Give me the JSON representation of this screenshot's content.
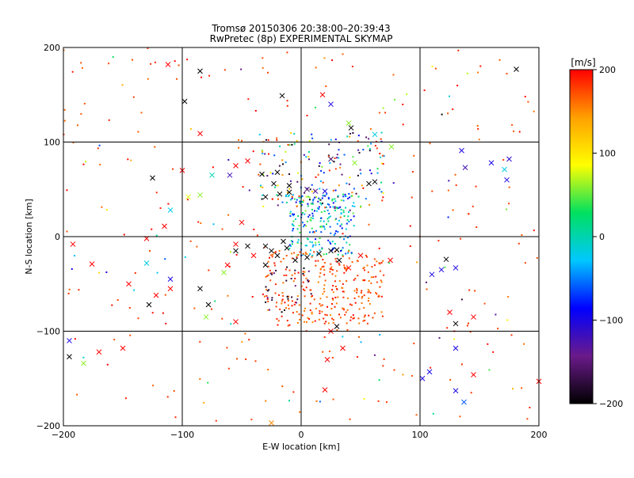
{
  "chart_data": {
    "type": "scatter",
    "title": "Tromsø 20150306 20:38:00–20:39:43",
    "subtitle": "RwPretec (8p) EXPERIMENTAL SKYMAP",
    "xlabel": "E-W location [km]",
    "ylabel": "N-S location [km]",
    "xlim": [
      -200,
      200
    ],
    "ylim": [
      -200,
      200
    ],
    "xticks": [
      -200,
      -100,
      0,
      100,
      200
    ],
    "yticks": [
      -200,
      -100,
      0,
      100,
      200
    ],
    "xtick_labels": [
      "−200",
      "−100",
      "0",
      "100",
      "200"
    ],
    "ytick_labels": [
      "−200",
      "−100",
      "0",
      "100",
      "200"
    ],
    "grid": true,
    "colorbar": {
      "label": "[m/s]",
      "range": [
        -200,
        200
      ],
      "ticks": [
        200,
        100,
        0,
        -100,
        -200
      ],
      "tick_labels": [
        "200",
        "100",
        "0",
        "−100",
        "−200"
      ],
      "colors": [
        "#000000",
        "#6a1a8a",
        "#0000ff",
        "#00c8ff",
        "#00e060",
        "#ffff00",
        "#ffa000",
        "#ff0000"
      ]
    },
    "cross_points": [
      {
        "x": -112,
        "y": 182,
        "v": 200
      },
      {
        "x": -85,
        "y": 175,
        "v": -200
      },
      {
        "x": -98,
        "y": 143,
        "v": -200
      },
      {
        "x": -16,
        "y": 149,
        "v": -200
      },
      {
        "x": 18,
        "y": 150,
        "v": 200
      },
      {
        "x": 25,
        "y": 140,
        "v": -100
      },
      {
        "x": 40,
        "y": 120,
        "v": 60
      },
      {
        "x": 42,
        "y": 115,
        "v": -200
      },
      {
        "x": 62,
        "y": 108,
        "v": -20
      },
      {
        "x": 76,
        "y": 95,
        "v": 60
      },
      {
        "x": 181,
        "y": 177,
        "v": -200
      },
      {
        "x": 135,
        "y": 91,
        "v": -100
      },
      {
        "x": 138,
        "y": 73,
        "v": -120
      },
      {
        "x": 160,
        "y": 78,
        "v": -100
      },
      {
        "x": 175,
        "y": 82,
        "v": -110
      },
      {
        "x": 171,
        "y": 71,
        "v": -20
      },
      {
        "x": 173,
        "y": 60,
        "v": -100
      },
      {
        "x": -85,
        "y": 109,
        "v": 200
      },
      {
        "x": -125,
        "y": 62,
        "v": -200
      },
      {
        "x": -100,
        "y": 70,
        "v": 200
      },
      {
        "x": -75,
        "y": 65,
        "v": 0
      },
      {
        "x": -60,
        "y": 65,
        "v": -120
      },
      {
        "x": -55,
        "y": 75,
        "v": 200
      },
      {
        "x": -45,
        "y": 80,
        "v": 200
      },
      {
        "x": -33,
        "y": 66,
        "v": -200
      },
      {
        "x": -20,
        "y": 68,
        "v": -200
      },
      {
        "x": -10,
        "y": 54,
        "v": -200
      },
      {
        "x": -23,
        "y": 56,
        "v": -200
      },
      {
        "x": -30,
        "y": 42,
        "v": -200
      },
      {
        "x": -18,
        "y": 45,
        "v": -200
      },
      {
        "x": -10,
        "y": 47,
        "v": -200
      },
      {
        "x": 5,
        "y": 50,
        "v": -160
      },
      {
        "x": 12,
        "y": 48,
        "v": -130
      },
      {
        "x": 20,
        "y": 48,
        "v": -100
      },
      {
        "x": 25,
        "y": 82,
        "v": -160
      },
      {
        "x": 45,
        "y": 78,
        "v": 60
      },
      {
        "x": 57,
        "y": 56,
        "v": -200
      },
      {
        "x": 62,
        "y": 58,
        "v": -200
      },
      {
        "x": -95,
        "y": 42,
        "v": 80
      },
      {
        "x": -85,
        "y": 44,
        "v": 60
      },
      {
        "x": -110,
        "y": 28,
        "v": -20
      },
      {
        "x": -115,
        "y": 11,
        "v": 200
      },
      {
        "x": -50,
        "y": 15,
        "v": 200
      },
      {
        "x": -130,
        "y": -2,
        "v": 200
      },
      {
        "x": -192,
        "y": -8,
        "v": 200
      },
      {
        "x": -176,
        "y": -29,
        "v": 200
      },
      {
        "x": -55,
        "y": -8,
        "v": 200
      },
      {
        "x": -45,
        "y": -10,
        "v": -200
      },
      {
        "x": -55,
        "y": -15,
        "v": -200
      },
      {
        "x": -40,
        "y": -20,
        "v": 200
      },
      {
        "x": -30,
        "y": -30,
        "v": -200
      },
      {
        "x": -30,
        "y": -10,
        "v": -200
      },
      {
        "x": -25,
        "y": -15,
        "v": -200
      },
      {
        "x": -20,
        "y": -20,
        "v": -200
      },
      {
        "x": -15,
        "y": -5,
        "v": -200
      },
      {
        "x": -12,
        "y": -12,
        "v": -200
      },
      {
        "x": -5,
        "y": -25,
        "v": -200
      },
      {
        "x": 5,
        "y": -22,
        "v": -200
      },
      {
        "x": 15,
        "y": -18,
        "v": -200
      },
      {
        "x": 25,
        "y": -15,
        "v": -200
      },
      {
        "x": 32,
        "y": -25,
        "v": -200
      },
      {
        "x": 30,
        "y": -14,
        "v": -200
      },
      {
        "x": 40,
        "y": -33,
        "v": 200
      },
      {
        "x": 50,
        "y": -20,
        "v": 200
      },
      {
        "x": 75,
        "y": -25,
        "v": 200
      },
      {
        "x": 110,
        "y": -40,
        "v": -100
      },
      {
        "x": 118,
        "y": -35,
        "v": -100
      },
      {
        "x": 122,
        "y": -24,
        "v": -200
      },
      {
        "x": 130,
        "y": -33,
        "v": -100
      },
      {
        "x": -130,
        "y": -28,
        "v": -20
      },
      {
        "x": -110,
        "y": -45,
        "v": -100
      },
      {
        "x": -145,
        "y": -50,
        "v": 200
      },
      {
        "x": -122,
        "y": -62,
        "v": 200
      },
      {
        "x": -128,
        "y": -72,
        "v": -200
      },
      {
        "x": -110,
        "y": -55,
        "v": 200
      },
      {
        "x": -85,
        "y": -55,
        "v": -200
      },
      {
        "x": -78,
        "y": -72,
        "v": -200
      },
      {
        "x": -62,
        "y": -30,
        "v": 200
      },
      {
        "x": -65,
        "y": -38,
        "v": 60
      },
      {
        "x": -80,
        "y": -85,
        "v": 60
      },
      {
        "x": -55,
        "y": -90,
        "v": 200
      },
      {
        "x": -150,
        "y": -118,
        "v": 200
      },
      {
        "x": -170,
        "y": -122,
        "v": 200
      },
      {
        "x": -195,
        "y": -110,
        "v": -100
      },
      {
        "x": -195,
        "y": -127,
        "v": -200
      },
      {
        "x": -183,
        "y": -134,
        "v": 60
      },
      {
        "x": 25,
        "y": -100,
        "v": 200
      },
      {
        "x": 30,
        "y": -95,
        "v": -200
      },
      {
        "x": 35,
        "y": -118,
        "v": 200
      },
      {
        "x": 22,
        "y": -130,
        "v": 200
      },
      {
        "x": 20,
        "y": -162,
        "v": 200
      },
      {
        "x": 108,
        "y": -143,
        "v": -100
      },
      {
        "x": 102,
        "y": -150,
        "v": -100
      },
      {
        "x": 125,
        "y": -80,
        "v": 200
      },
      {
        "x": 130,
        "y": -92,
        "v": -200
      },
      {
        "x": 145,
        "y": -85,
        "v": 200
      },
      {
        "x": 130,
        "y": -118,
        "v": -100
      },
      {
        "x": 130,
        "y": -163,
        "v": -100
      },
      {
        "x": 137,
        "y": -175,
        "v": -60
      },
      {
        "x": 145,
        "y": -146,
        "v": 200
      },
      {
        "x": 200,
        "y": -153,
        "v": 200
      },
      {
        "x": -25,
        "y": -197,
        "v": 150
      }
    ],
    "cluster_regions": [
      {
        "x0": -35,
        "y0": 30,
        "x1": 70,
        "y1": 110,
        "vmin": -200,
        "vmax": 200,
        "n": 170
      },
      {
        "x0": -10,
        "y0": -20,
        "x1": 45,
        "y1": 45,
        "vmin": -100,
        "vmax": 60,
        "n": 220
      },
      {
        "x0": -30,
        "y0": -95,
        "x1": 70,
        "y1": -15,
        "vmin": 150,
        "vmax": 200,
        "n": 280
      },
      {
        "x0": -30,
        "y0": -80,
        "x1": 10,
        "y1": -30,
        "vmin": -200,
        "vmax": -140,
        "n": 30
      },
      {
        "x0": -200,
        "y0": -195,
        "x1": 200,
        "y1": 200,
        "vmin": 160,
        "vmax": 200,
        "n": 240
      },
      {
        "x0": -200,
        "y0": -195,
        "x1": 200,
        "y1": 200,
        "vmin": -200,
        "vmax": 200,
        "n": 70
      }
    ]
  }
}
